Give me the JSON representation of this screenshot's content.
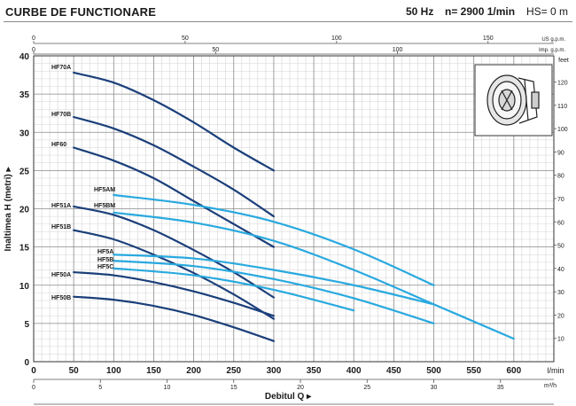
{
  "header": {
    "title": "CURBE DE FUNCTIONARE",
    "frequency": "50 Hz",
    "speed": "n= 2900  1/min",
    "hs": "HS= 0 m"
  },
  "chart_data": {
    "type": "line",
    "xlabel": "Debitul Q",
    "ylabel": "Inaltimea H (metri)",
    "x_unit": "l/min",
    "xlim": [
      0,
      650
    ],
    "ylim": [
      0,
      40
    ],
    "xticks": [
      0,
      50,
      100,
      150,
      200,
      250,
      300,
      350,
      400,
      450,
      500,
      550,
      600
    ],
    "yticks": [
      0,
      5,
      10,
      15,
      20,
      25,
      30,
      35,
      40
    ],
    "grid": true,
    "secondary_axes": {
      "us_gpm": {
        "label": "US g.p.m.",
        "ticks": [
          0,
          50,
          100,
          150
        ]
      },
      "imp_gpm": {
        "label": "Imp. g.p.m.",
        "ticks": [
          0,
          50,
          100
        ]
      },
      "m3h": {
        "label": "m³/h",
        "ticks": [
          0,
          5,
          10,
          15,
          20,
          25,
          30,
          35
        ]
      },
      "feet": {
        "label": "feet",
        "ticks": [
          10,
          20,
          30,
          40,
          50,
          60,
          70,
          80,
          90,
          100,
          110,
          120
        ]
      }
    },
    "colors": {
      "dark": "#1b3f7a",
      "light": "#29a9df"
    },
    "series": [
      {
        "name": "HF70A",
        "color": "dark",
        "x": [
          50,
          100,
          150,
          200,
          250,
          300
        ],
        "y": [
          37.8,
          36.5,
          34.2,
          31.3,
          28,
          25
        ]
      },
      {
        "name": "HF70B",
        "color": "dark",
        "x": [
          50,
          100,
          150,
          200,
          250,
          300
        ],
        "y": [
          32,
          30.5,
          28.3,
          25.5,
          22.5,
          19
        ]
      },
      {
        "name": "HF60",
        "color": "dark",
        "x": [
          50,
          100,
          150,
          200,
          250,
          300
        ],
        "y": [
          28,
          26.3,
          24,
          21,
          18,
          15
        ]
      },
      {
        "name": "HF51A",
        "color": "dark",
        "x": [
          50,
          100,
          150,
          200,
          250,
          300
        ],
        "y": [
          20.3,
          19.2,
          17.2,
          14.6,
          11.7,
          8.4
        ]
      },
      {
        "name": "HF51B",
        "color": "dark",
        "x": [
          50,
          100,
          150,
          200,
          250,
          300
        ],
        "y": [
          17.2,
          16,
          14,
          11.6,
          8.8,
          5.6
        ]
      },
      {
        "name": "HF50A",
        "color": "dark",
        "x": [
          50,
          100,
          150,
          200,
          250,
          300
        ],
        "y": [
          11.7,
          11.3,
          10.4,
          9.2,
          7.7,
          6
        ]
      },
      {
        "name": "HF50B",
        "color": "dark",
        "x": [
          50,
          100,
          150,
          200,
          250,
          300
        ],
        "y": [
          8.5,
          8.1,
          7.3,
          6.1,
          4.5,
          2.7
        ]
      },
      {
        "name": "HF5AM",
        "color": "light",
        "x": [
          100,
          200,
          300,
          400,
          500
        ],
        "y": [
          21.8,
          20.5,
          18.3,
          14.7,
          10
        ]
      },
      {
        "name": "HF5BM",
        "color": "light",
        "x": [
          100,
          200,
          300,
          400,
          500,
          600
        ],
        "y": [
          19.5,
          18.2,
          15.8,
          12,
          7.5,
          3
        ]
      },
      {
        "name": "HF5A",
        "color": "light",
        "x": [
          100,
          200,
          300,
          400,
          500
        ],
        "y": [
          14,
          13.5,
          12,
          10,
          7.5
        ]
      },
      {
        "name": "HF5B",
        "color": "light",
        "x": [
          100,
          200,
          300,
          400,
          500
        ],
        "y": [
          13.2,
          12.5,
          10.8,
          8.3,
          5
        ]
      },
      {
        "name": "HF5C",
        "color": "light",
        "x": [
          100,
          200,
          300,
          400
        ],
        "y": [
          12.2,
          11.3,
          9.4,
          6.7
        ]
      }
    ]
  },
  "pump_image": {
    "icon": "pump-housing-icon"
  }
}
